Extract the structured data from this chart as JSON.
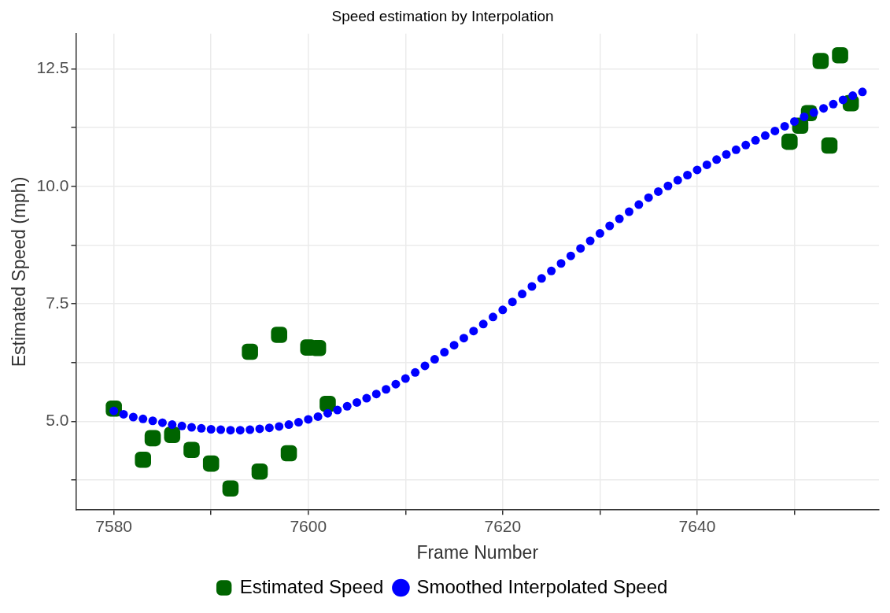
{
  "chart_data": {
    "type": "scatter",
    "title": "Speed estimation by Interpolation",
    "xlabel": "Frame Number",
    "ylabel": "Estimated Speed (mph)",
    "xlim": [
      7576.1,
      7658.7
    ],
    "xticks": [
      7580,
      {
        "value": 7590,
        "label": null
      },
      7600,
      {
        "value": 7610,
        "label": null
      },
      7620,
      {
        "value": 7630,
        "label": null
      },
      7640,
      {
        "value": 7650,
        "label": null
      }
    ],
    "ylim": [
      3.11,
      13.25
    ],
    "yticks": [
      {
        "value": 3.75,
        "label": null
      },
      {
        "value": 5,
        "label": "5.0"
      },
      {
        "value": 6.25,
        "label": null
      },
      7.5,
      {
        "value": 8.75,
        "label": null
      },
      {
        "value": 10,
        "label": "10.0"
      },
      {
        "value": 11.25,
        "label": null
      },
      12.5
    ],
    "grid": true,
    "legend": "bottom",
    "series": [
      {
        "name": "Estimated Speed",
        "color": "#006400",
        "marker": "square",
        "x": [
          7580,
          7583,
          7584,
          7586,
          7588,
          7590,
          7592,
          7594,
          7595,
          7597,
          7598,
          7600,
          7601,
          7602,
          7649.5,
          7650.6,
          7651.5,
          7652.7,
          7653.6,
          7654.7,
          7655.8
        ],
        "values": [
          5.27,
          4.18,
          4.64,
          4.71,
          4.39,
          4.1,
          3.57,
          6.48,
          3.93,
          6.84,
          4.32,
          6.57,
          6.56,
          5.37,
          10.95,
          11.29,
          11.56,
          12.67,
          10.87,
          12.79,
          11.77
        ]
      },
      {
        "name": "Smoothed Interpolated Speed",
        "color": "#0000ff",
        "marker": "circle",
        "x": [
          7580,
          7581,
          7582,
          7583,
          7584,
          7585,
          7586,
          7587,
          7588,
          7589,
          7590,
          7591,
          7592,
          7593,
          7594,
          7595,
          7596,
          7597,
          7598,
          7599,
          7600,
          7601,
          7602,
          7603,
          7604,
          7605,
          7606,
          7607,
          7608,
          7609,
          7610,
          7611,
          7612,
          7613,
          7614,
          7615,
          7616,
          7617,
          7618,
          7619,
          7620,
          7621,
          7622,
          7623,
          7624,
          7625,
          7626,
          7627,
          7628,
          7629,
          7630,
          7631,
          7632,
          7633,
          7634,
          7635,
          7636,
          7637,
          7638,
          7639,
          7640,
          7641,
          7642,
          7643,
          7644,
          7645,
          7646,
          7647,
          7648,
          7649,
          7650,
          7651,
          7652,
          7653,
          7654,
          7655,
          7656,
          7657
        ],
        "values": [
          5.22,
          5.15,
          5.09,
          5.05,
          5.01,
          4.97,
          4.93,
          4.9,
          4.87,
          4.85,
          4.83,
          4.82,
          4.81,
          4.81,
          4.82,
          4.84,
          4.86,
          4.89,
          4.93,
          4.98,
          5.04,
          5.1,
          5.17,
          5.24,
          5.32,
          5.4,
          5.49,
          5.58,
          5.68,
          5.79,
          5.91,
          6.04,
          6.18,
          6.32,
          6.47,
          6.62,
          6.77,
          6.92,
          7.07,
          7.22,
          7.37,
          7.54,
          7.71,
          7.87,
          8.04,
          8.2,
          8.36,
          8.52,
          8.68,
          8.84,
          9.0,
          9.16,
          9.31,
          9.46,
          9.61,
          9.76,
          9.89,
          10.01,
          10.13,
          10.24,
          10.35,
          10.46,
          10.57,
          10.68,
          10.78,
          10.88,
          10.98,
          11.08,
          11.18,
          11.28,
          11.38,
          11.48,
          11.57,
          11.66,
          11.75,
          11.84,
          11.93,
          12.01
        ]
      }
    ]
  }
}
